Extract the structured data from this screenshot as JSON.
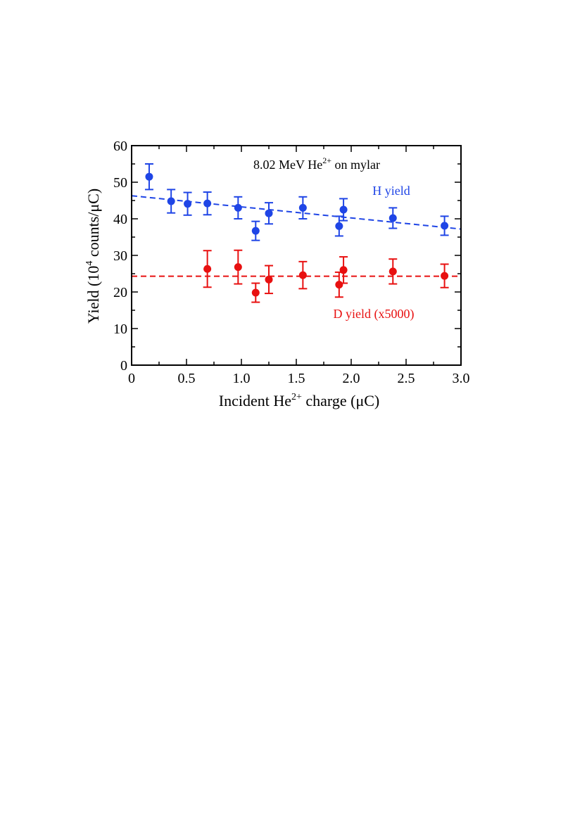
{
  "chart_data": {
    "type": "scatter",
    "title": "8.02 MeV He",
    "title_sup": "2+",
    "title_rest": " on mylar",
    "xlabel_pre": "Incident He",
    "xlabel_sup": "2+",
    "xlabel_post": " charge (μC)",
    "ylabel_pre": "Yield (10",
    "ylabel_sup": "4",
    "ylabel_post": " counts/μC)",
    "xlim": [
      0,
      3.0
    ],
    "ylim": [
      0,
      60
    ],
    "xticks": [
      0,
      0.5,
      1.0,
      1.5,
      2.0,
      2.5,
      3.0
    ],
    "xtick_labels": [
      "0",
      "0.5",
      "1.0",
      "1.5",
      "2.0",
      "2.5",
      "3.0"
    ],
    "yticks": [
      0,
      10,
      20,
      30,
      40,
      50,
      60
    ],
    "ytick_labels": [
      "0",
      "10",
      "20",
      "30",
      "40",
      "50",
      "60"
    ],
    "grid": false,
    "series": [
      {
        "name": "H yield",
        "color": "#1f45e6",
        "x": [
          0.16,
          0.36,
          0.51,
          0.69,
          0.97,
          1.13,
          1.25,
          1.56,
          1.89,
          1.93,
          2.38,
          2.85
        ],
        "y": [
          51.5,
          44.8,
          44.1,
          44.2,
          43.0,
          36.7,
          41.5,
          43.0,
          38.0,
          42.5,
          40.2,
          38.1
        ],
        "yerr": [
          3.5,
          3.2,
          3.1,
          3.1,
          3.0,
          2.6,
          2.9,
          3.0,
          2.7,
          3.0,
          2.8,
          2.6
        ],
        "fit": {
          "x": [
            0,
            3.0
          ],
          "y": [
            46.3,
            37.2
          ],
          "style": "dashed"
        }
      },
      {
        "name": "D yield (x5000)",
        "color": "#e81010",
        "x": [
          0.69,
          0.97,
          1.13,
          1.25,
          1.56,
          1.89,
          1.93,
          2.38,
          2.85
        ],
        "y": [
          26.3,
          26.8,
          19.8,
          23.4,
          24.6,
          22.0,
          26.0,
          25.6,
          24.4
        ],
        "yerr": [
          5.0,
          4.6,
          2.6,
          3.8,
          3.7,
          3.4,
          3.6,
          3.4,
          3.2
        ],
        "fit": {
          "x": [
            0,
            3.0
          ],
          "y": [
            24.3,
            24.3
          ],
          "style": "dashed"
        }
      }
    ]
  }
}
